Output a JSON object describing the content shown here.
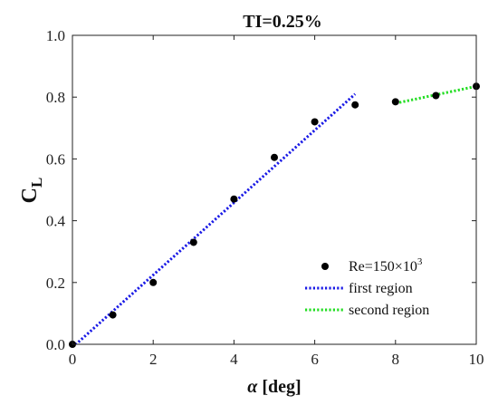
{
  "chart_data": {
    "type": "scatter",
    "title": "TI=0.25%",
    "xlabel_symbol": "α",
    "xlabel_unit": " [deg]",
    "ylabel_main": "C",
    "ylabel_sub": "L",
    "xlim": [
      0,
      10
    ],
    "ylim": [
      0,
      1.0
    ],
    "xticks": [
      0,
      2,
      4,
      6,
      8,
      10
    ],
    "yticks": [
      0.0,
      0.2,
      0.4,
      0.6,
      0.8,
      1.0
    ],
    "ytick_labels": [
      "0.0",
      "0.2",
      "0.4",
      "0.6",
      "0.8",
      "1.0"
    ],
    "grid": false,
    "legend_position": "bottom-right",
    "series": [
      {
        "name": "Re=150×10",
        "name_sup": "3",
        "kind": "markers",
        "color": "#000000",
        "x": [
          0,
          1,
          2,
          3,
          4,
          5,
          6,
          7,
          8,
          9,
          10
        ],
        "y": [
          0.0,
          0.095,
          0.2,
          0.33,
          0.47,
          0.605,
          0.72,
          0.775,
          0.785,
          0.805,
          0.835
        ]
      },
      {
        "name": "first region",
        "kind": "dotted-line",
        "color": "#1a1ae6",
        "x": [
          0,
          7
        ],
        "y": [
          -0.01,
          0.81
        ]
      },
      {
        "name": "second region",
        "kind": "dotted-line",
        "color": "#22dd22",
        "x": [
          8,
          10
        ],
        "y": [
          0.78,
          0.835
        ]
      }
    ]
  }
}
